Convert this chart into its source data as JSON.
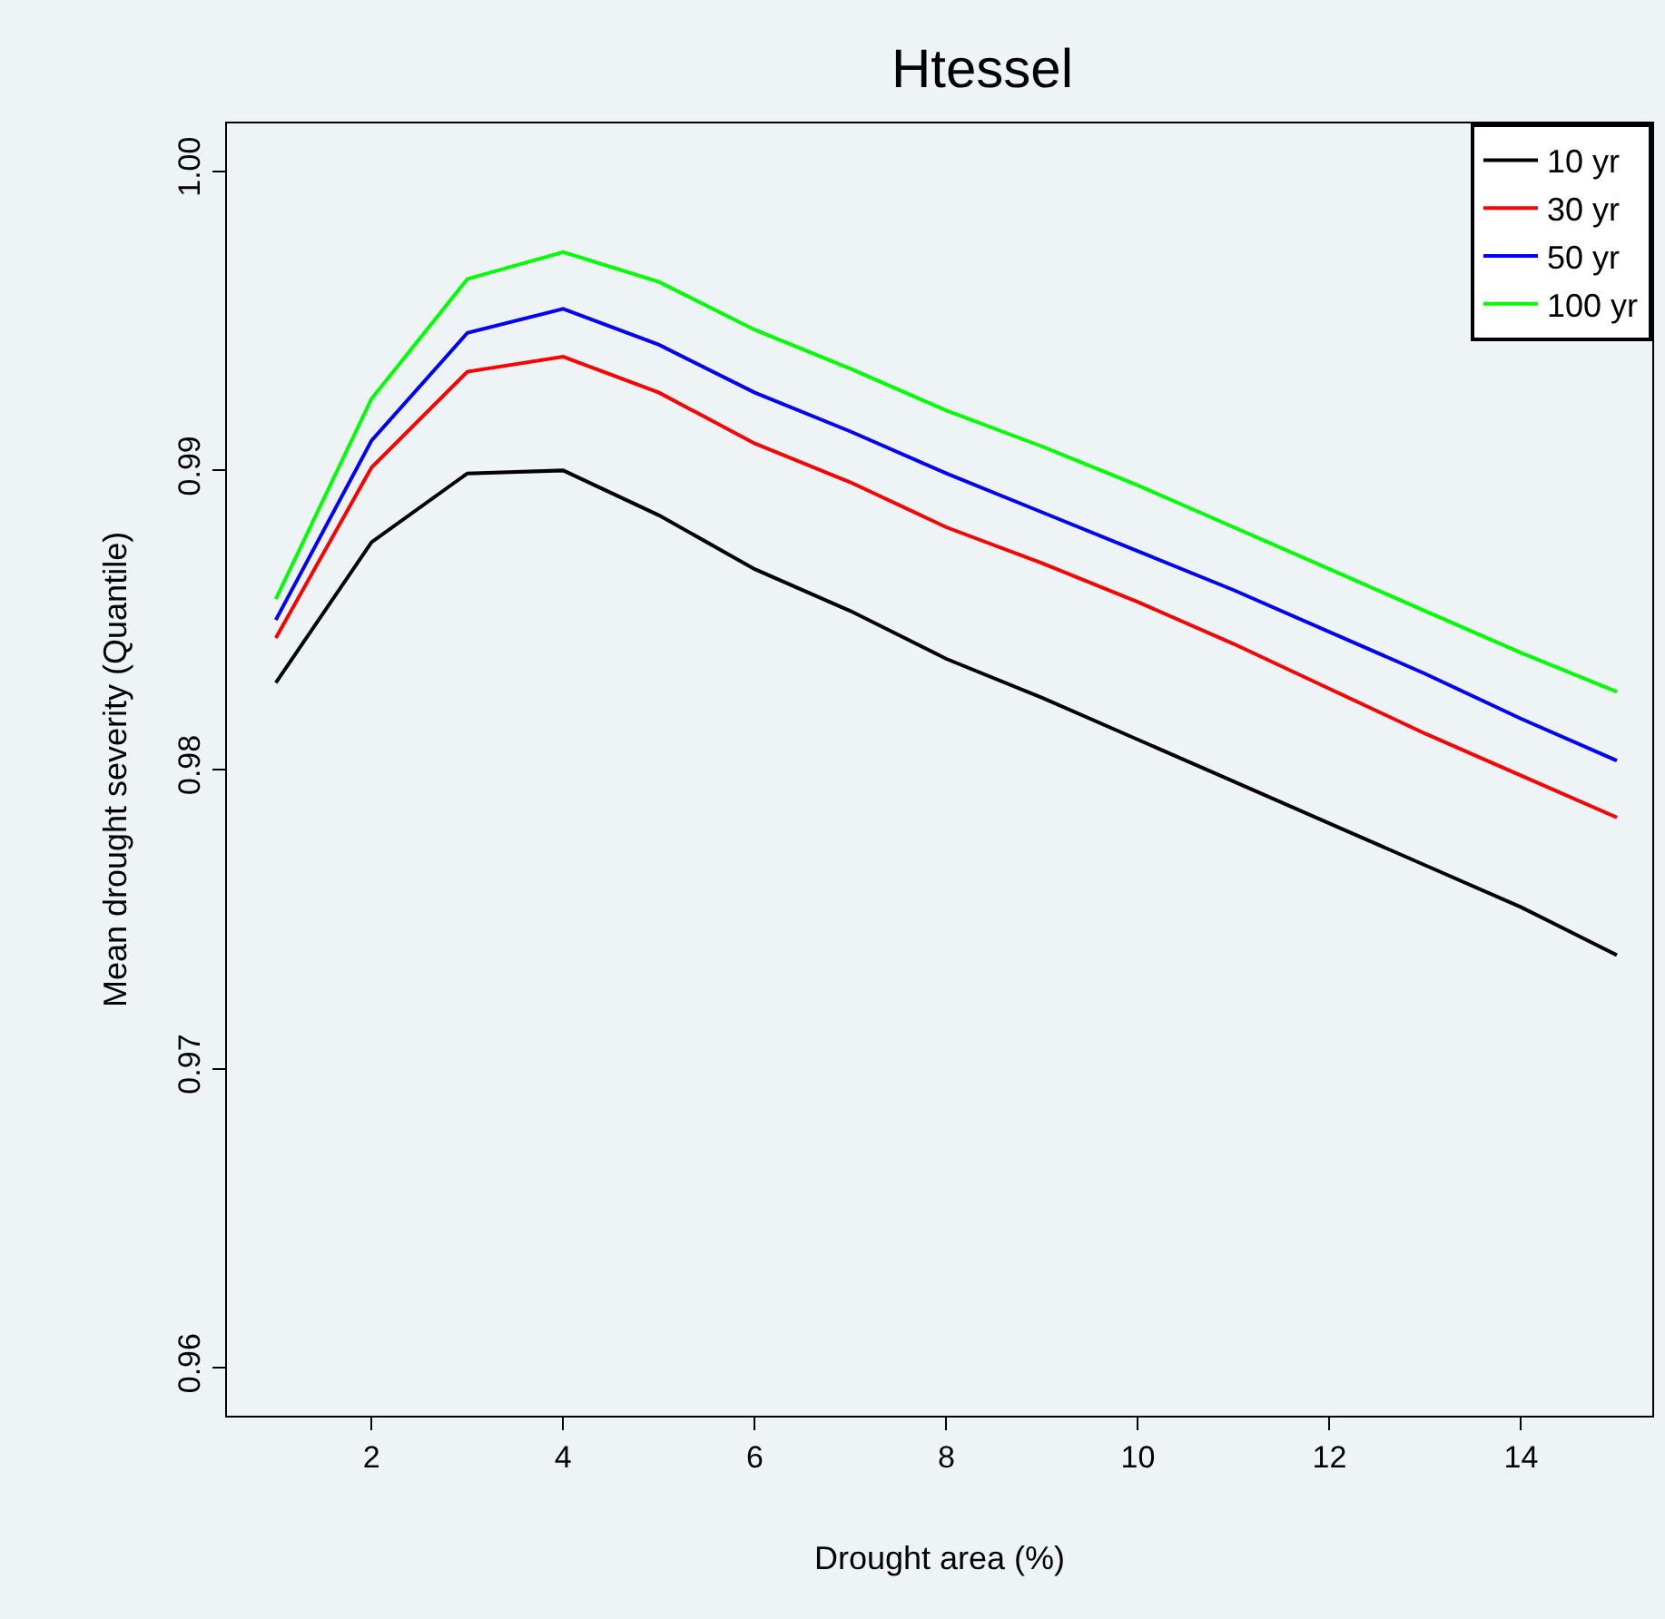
{
  "chart_data": {
    "type": "line",
    "title": "Htessel",
    "xlabel": "Drought area (%)",
    "ylabel": "Mean drought severity (Quantile)",
    "x": [
      1,
      2,
      3,
      4,
      5,
      6,
      7,
      8,
      9,
      10,
      11,
      12,
      13,
      14,
      15
    ],
    "series": [
      {
        "name": "10 yr",
        "color": "#000000",
        "values": [
          0.9829,
          0.9876,
          0.9899,
          0.99,
          0.9885,
          0.9867,
          0.9853,
          0.9837,
          0.9824,
          0.981,
          0.9796,
          0.9782,
          0.9768,
          0.9754,
          0.9738
        ]
      },
      {
        "name": "30 yr",
        "color": "#ff0000",
        "values": [
          0.9844,
          0.9901,
          0.9933,
          0.9938,
          0.9926,
          0.9909,
          0.9896,
          0.9881,
          0.9869,
          0.9856,
          0.9842,
          0.9827,
          0.9812,
          0.9798,
          0.9784
        ]
      },
      {
        "name": "50 yr",
        "color": "#0000ff",
        "values": [
          0.985,
          0.991,
          0.9946,
          0.9954,
          0.9942,
          0.9926,
          0.9913,
          0.9899,
          0.9886,
          0.9873,
          0.986,
          0.9846,
          0.9832,
          0.9817,
          0.9803
        ]
      },
      {
        "name": "100 yr",
        "color": "#00ff00",
        "values": [
          0.9857,
          0.9924,
          0.9964,
          0.9973,
          0.9963,
          0.9947,
          0.9934,
          0.992,
          0.9908,
          0.9895,
          0.9881,
          0.9867,
          0.9853,
          0.9839,
          0.9826
        ]
      }
    ],
    "xlim": [
      0.49,
      15.37
    ],
    "xticks": [
      2,
      4,
      6,
      8,
      10,
      12,
      14
    ],
    "ylim": [
      0.9584,
      1.0016
    ],
    "yticks": [
      {
        "value": 0.96,
        "label": "0.96"
      },
      {
        "value": 0.97,
        "label": "0.97"
      },
      {
        "value": 0.98,
        "label": "0.98"
      },
      {
        "value": 0.99,
        "label": "0.99"
      },
      {
        "value": 1.0,
        "label": "1.00"
      }
    ],
    "grid": false,
    "legend": "top right",
    "marker": "none",
    "line_style": "solid"
  }
}
